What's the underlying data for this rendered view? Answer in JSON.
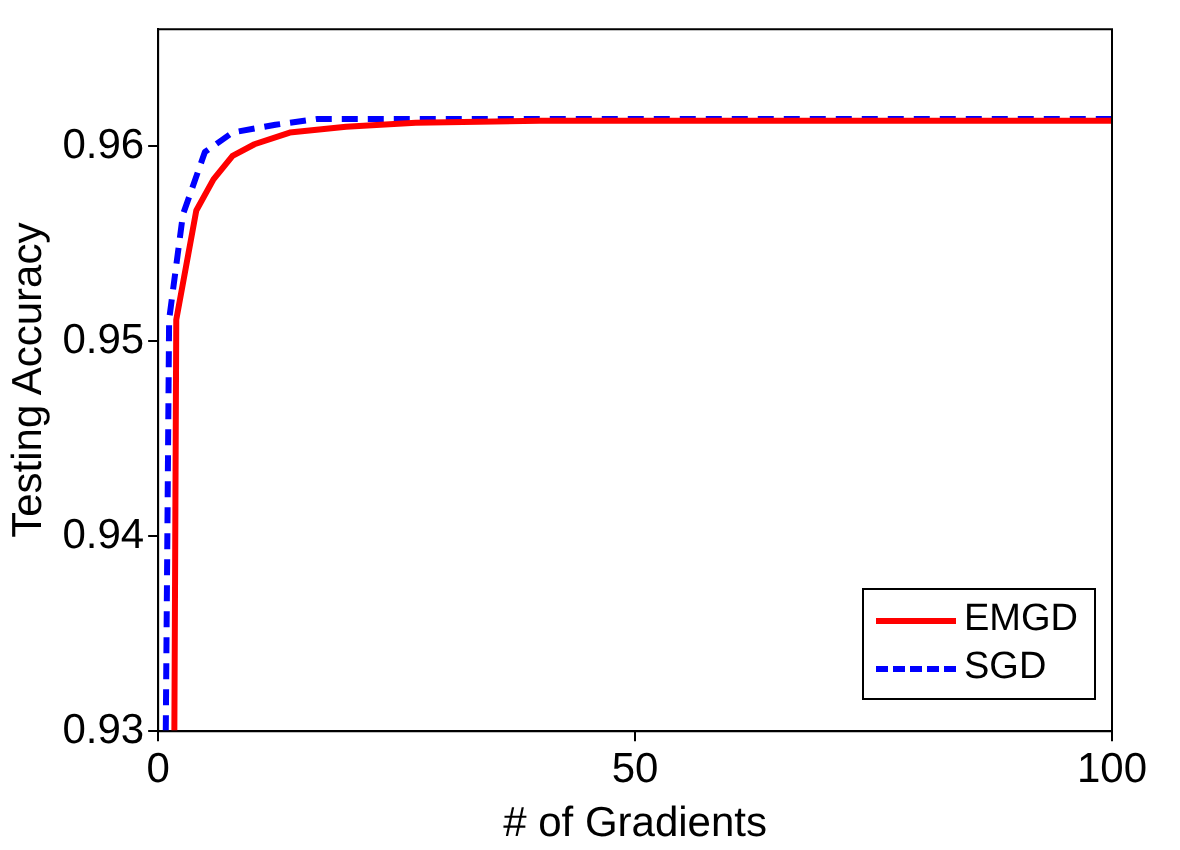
{
  "chart_data": {
    "type": "line",
    "xlabel": "# of Gradients",
    "ylabel": "Testing Accuracy",
    "xlim": [
      0,
      100
    ],
    "ylim": [
      0.93,
      0.966
    ],
    "xticks": [
      0,
      50,
      100
    ],
    "yticks": [
      0.93,
      0.94,
      0.95,
      0.96
    ],
    "grid": false,
    "legend": "bottom right",
    "marker": "none",
    "series": [
      {
        "name": "EMGD",
        "color": "#ff0000",
        "line_style": "solid",
        "x": [
          1.7,
          1.9,
          4,
          5.8,
          7.8,
          10.1,
          13.8,
          19.7,
          27,
          40,
          60,
          80,
          100
        ],
        "values": [
          0.93,
          0.9511,
          0.9567,
          0.9583,
          0.9595,
          0.9601,
          0.9607,
          0.961,
          0.9612,
          0.9613,
          0.9613,
          0.9613,
          0.9613
        ]
      },
      {
        "name": "SGD",
        "color": "#0000ff",
        "line_style": "dashed",
        "x": [
          0.8,
          1.15,
          2.6,
          4.9,
          7.8,
          12.3,
          16.7,
          30,
          50,
          75,
          100
        ],
        "values": [
          0.93,
          0.9511,
          0.9565,
          0.9597,
          0.9607,
          0.9611,
          0.9614,
          0.9614,
          0.9614,
          0.9614,
          0.9614
        ]
      }
    ]
  }
}
